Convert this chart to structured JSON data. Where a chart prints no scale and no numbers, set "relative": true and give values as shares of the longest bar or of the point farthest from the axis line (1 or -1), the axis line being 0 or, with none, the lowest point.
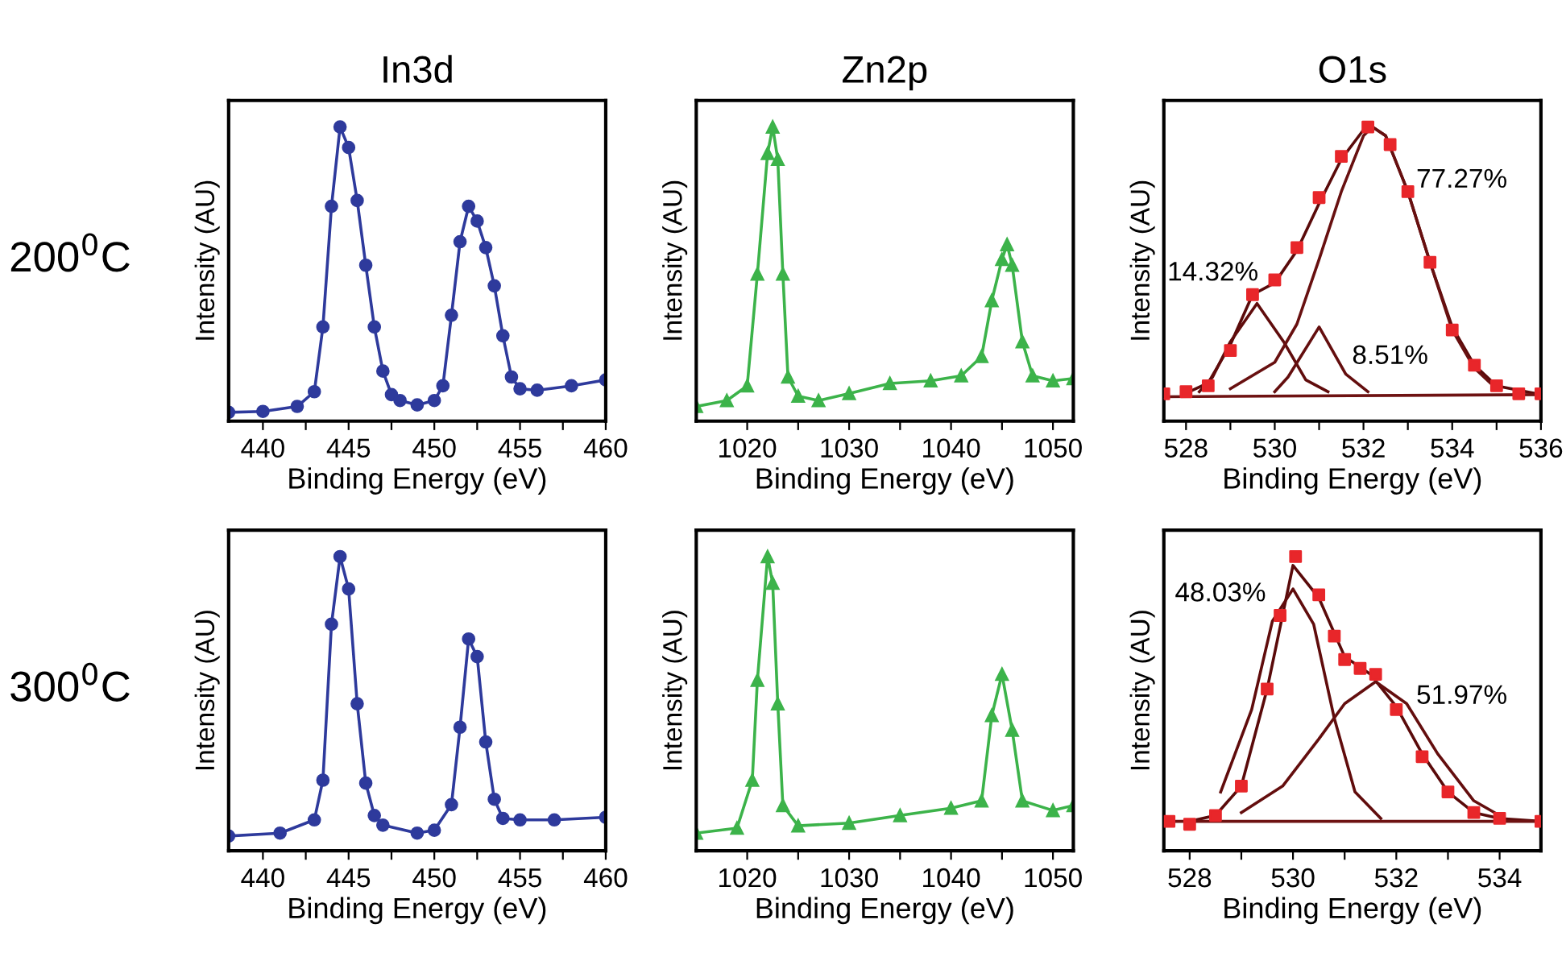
{
  "chart_data": [
    {
      "type": "line",
      "title": "In3d",
      "xlabel": "Binding Energy (eV)",
      "ylabel": "Intensity (AU)",
      "relative": true,
      "tick_labels": "x",
      "legend": false,
      "grid": false,
      "annotations": [
        "200$^{0}$C"
      ],
      "xlim": [
        438,
        460
      ],
      "xticks": [
        440,
        {
          "value": 442.5,
          "label": null
        },
        445,
        {
          "value": 447.5,
          "label": null
        },
        450,
        {
          "value": 452.5,
          "label": null
        },
        455,
        {
          "value": 457.5,
          "label": null
        },
        460
      ],
      "series": [
        {
          "color": "#2e3a9c",
          "marker": "circle",
          "x": [
            438,
            440,
            442,
            443,
            443.5,
            444,
            444.5,
            445,
            445.5,
            446,
            446.5,
            447,
            447.5,
            448,
            449,
            450,
            450.5,
            451,
            451.5,
            452,
            452.5,
            453,
            453.5,
            454,
            454.5,
            455,
            456,
            458,
            460
          ],
          "values": [
            0.03,
            0.033,
            0.05,
            0.1,
            0.32,
            0.73,
            1.0,
            0.93,
            0.75,
            0.53,
            0.32,
            0.17,
            0.09,
            0.07,
            0.055,
            0.07,
            0.12,
            0.36,
            0.61,
            0.73,
            0.68,
            0.59,
            0.46,
            0.29,
            0.15,
            0.11,
            0.105,
            0.12,
            0.14
          ]
        }
      ]
    },
    {
      "type": "line",
      "title": "Zn2p",
      "xlabel": "Binding Energy (eV)",
      "ylabel": "Intensity (AU)",
      "relative": true,
      "tick_labels": "x",
      "legend": false,
      "grid": false,
      "xlim": [
        1015,
        1052
      ],
      "xticks": [
        1020,
        {
          "value": 1025,
          "label": null
        },
        1030,
        {
          "value": 1035,
          "label": null
        },
        1040,
        {
          "value": 1045,
          "label": null
        },
        1050
      ],
      "series": [
        {
          "color": "#3cb34a",
          "marker": "triangle",
          "x": [
            1015,
            1018,
            1020,
            1021,
            1022,
            1022.5,
            1023,
            1023.5,
            1024,
            1025,
            1027,
            1030,
            1034,
            1038,
            1041,
            1043,
            1044,
            1045,
            1045.5,
            1046,
            1047,
            1048,
            1050,
            1052
          ],
          "values": [
            0.05,
            0.07,
            0.12,
            0.5,
            0.91,
            1.0,
            0.89,
            0.5,
            0.15,
            0.085,
            0.07,
            0.094,
            0.128,
            0.137,
            0.154,
            0.22,
            0.41,
            0.55,
            0.6,
            0.53,
            0.27,
            0.154,
            0.137,
            0.145
          ]
        }
      ]
    },
    {
      "type": "line",
      "title": "O1s",
      "xlabel": "Binding Energy (eV)",
      "ylabel": "Intensity (AU)",
      "relative": true,
      "tick_labels": "x",
      "legend": false,
      "grid": false,
      "annotations": [
        "77.27%",
        "14.32%",
        "8.51%"
      ],
      "xlim": [
        527.5,
        536
      ],
      "xticks": [
        528,
        {
          "value": 529,
          "label": null
        },
        530,
        {
          "value": 531,
          "label": null
        },
        532,
        {
          "value": 533,
          "label": null
        },
        534,
        {
          "value": 535,
          "label": null
        },
        536
      ],
      "series": [
        {
          "type": "scatter",
          "color": "#e8262a",
          "marker": "square",
          "x": [
            527.5,
            528,
            528.5,
            529,
            529.5,
            530,
            530.5,
            531,
            531.5,
            532.1,
            532.6,
            533,
            533.5,
            534,
            534.5,
            535,
            535.5,
            536
          ],
          "values": [
            0.093,
            0.1,
            0.12,
            0.24,
            0.43,
            0.48,
            0.59,
            0.76,
            0.9,
            1.0,
            0.94,
            0.78,
            0.54,
            0.31,
            0.19,
            0.12,
            0.093,
            0.093
          ]
        },
        {
          "color": "#5a0a0a",
          "marker": "none",
          "x": [
            528,
            528.5,
            529,
            529.5,
            530,
            530.5,
            531,
            531.5,
            532,
            532.2,
            532.5,
            533,
            533.5,
            534,
            534.5,
            535,
            536
          ],
          "values": [
            0.095,
            0.13,
            0.26,
            0.43,
            0.47,
            0.58,
            0.74,
            0.89,
            0.99,
            1.0,
            0.97,
            0.78,
            0.54,
            0.32,
            0.19,
            0.12,
            0.09
          ]
        },
        {
          "color": "#600c0c",
          "marker": "none",
          "x": [
            528.3,
            528.6,
            529,
            529.6,
            530.2,
            530.7,
            531.2
          ],
          "values": [
            0.1,
            0.15,
            0.27,
            0.4,
            0.27,
            0.14,
            0.1
          ]
        },
        {
          "color": "#640e0e",
          "marker": "none",
          "x": [
            530,
            530.3,
            531,
            531.6,
            532.1
          ],
          "values": [
            0.1,
            0.15,
            0.32,
            0.16,
            0.1
          ]
        },
        {
          "color": "#681010",
          "marker": "none",
          "x": [
            529,
            530,
            530.5,
            531,
            531.5,
            532,
            532.2,
            532.5,
            533,
            533.5,
            534,
            534.5,
            535
          ],
          "values": [
            0.11,
            0.2,
            0.33,
            0.55,
            0.78,
            0.97,
            1.0,
            0.97,
            0.78,
            0.54,
            0.31,
            0.18,
            0.11
          ]
        },
        {
          "color": "#6e1212",
          "marker": "none",
          "x": [
            527.5,
            536
          ],
          "values": [
            0.083,
            0.09
          ]
        }
      ]
    },
    {
      "type": "line",
      "xlabel": "Binding Energy (eV)",
      "ylabel": "Intensity (AU)",
      "relative": true,
      "tick_labels": "x",
      "legend": false,
      "grid": false,
      "annotations": [
        "300$^{0}$C"
      ],
      "xlim": [
        438,
        460
      ],
      "xticks": [
        440,
        {
          "value": 442.5,
          "label": null
        },
        445,
        {
          "value": 447.5,
          "label": null
        },
        450,
        {
          "value": 452.5,
          "label": null
        },
        455,
        {
          "value": 457.5,
          "label": null
        },
        460
      ],
      "series": [
        {
          "color": "#2e3a9c",
          "marker": "circle",
          "x": [
            438,
            441,
            443,
            443.5,
            444,
            444.5,
            445,
            445.5,
            446,
            446.5,
            447,
            449,
            450,
            451,
            451.5,
            452,
            452.5,
            453,
            453.5,
            454,
            455,
            457,
            460
          ],
          "values": [
            0.05,
            0.06,
            0.105,
            0.24,
            0.77,
            1.0,
            0.89,
            0.5,
            0.23,
            0.12,
            0.087,
            0.06,
            0.07,
            0.157,
            0.42,
            0.72,
            0.66,
            0.37,
            0.175,
            0.11,
            0.105,
            0.105,
            0.114
          ]
        }
      ]
    },
    {
      "type": "line",
      "xlabel": "Binding Energy (eV)",
      "ylabel": "Intensity (AU)",
      "relative": true,
      "tick_labels": "x",
      "legend": false,
      "grid": false,
      "xlim": [
        1015,
        1052
      ],
      "xticks": [
        1020,
        {
          "value": 1025,
          "label": null
        },
        1030,
        {
          "value": 1035,
          "label": null
        },
        1040,
        {
          "value": 1045,
          "label": null
        },
        1050
      ],
      "series": [
        {
          "color": "#3cb34a",
          "marker": "triangle",
          "x": [
            1015,
            1019,
            1020.5,
            1021,
            1022,
            1022.5,
            1023,
            1023.5,
            1025,
            1030,
            1035,
            1040,
            1043,
            1044,
            1045,
            1046,
            1047,
            1050,
            1052
          ],
          "values": [
            0.06,
            0.077,
            0.24,
            0.58,
            1.0,
            0.91,
            0.5,
            0.154,
            0.085,
            0.094,
            0.12,
            0.145,
            0.17,
            0.46,
            0.6,
            0.41,
            0.17,
            0.137,
            0.154
          ]
        }
      ]
    },
    {
      "type": "line",
      "xlabel": "Binding Energy (eV)",
      "ylabel": "Intensity (AU)",
      "relative": true,
      "tick_labels": "x",
      "legend": false,
      "grid": false,
      "annotations": [
        "48.03%",
        "51.97%"
      ],
      "xlim": [
        527.5,
        534.8
      ],
      "xticks": [
        528,
        {
          "value": 529,
          "label": null
        },
        530,
        {
          "value": 531,
          "label": null
        },
        532,
        {
          "value": 533,
          "label": null
        },
        534
      ],
      "series": [
        {
          "type": "scatter",
          "color": "#e8262a",
          "marker": "square",
          "x": [
            527.6,
            528,
            528.5,
            529,
            529.5,
            529.75,
            530.05,
            530.5,
            530.8,
            531,
            531.3,
            531.6,
            532,
            532.5,
            533,
            533.5,
            534,
            534.8
          ],
          "values": [
            0.1,
            0.09,
            0.12,
            0.22,
            0.55,
            0.8,
            1.0,
            0.87,
            0.73,
            0.65,
            0.62,
            0.6,
            0.48,
            0.32,
            0.2,
            0.13,
            0.11,
            0.1
          ]
        },
        {
          "color": "#5a0a0a",
          "marker": "none",
          "x": [
            528,
            528.5,
            529,
            529.5,
            530,
            530.5,
            531,
            531.5,
            532,
            532.5,
            533,
            533.5,
            534,
            534.8
          ],
          "values": [
            0.1,
            0.12,
            0.22,
            0.55,
            0.97,
            0.86,
            0.66,
            0.6,
            0.49,
            0.33,
            0.2,
            0.13,
            0.11,
            0.1
          ]
        },
        {
          "color": "#600c0c",
          "marker": "none",
          "x": [
            528.6,
            529.2,
            529.6,
            530,
            530.4,
            530.8,
            531.2,
            531.7
          ],
          "values": [
            0.2,
            0.48,
            0.78,
            0.89,
            0.77,
            0.45,
            0.2,
            0.11
          ]
        },
        {
          "color": "#640e0e",
          "marker": "none",
          "x": [
            529,
            529.8,
            530.5,
            531,
            531.6,
            532.2,
            532.8,
            533.5,
            534
          ],
          "values": [
            0.13,
            0.22,
            0.38,
            0.5,
            0.575,
            0.5,
            0.33,
            0.17,
            0.12
          ]
        },
        {
          "color": "#6e1212",
          "marker": "none",
          "x": [
            527.5,
            534.8
          ],
          "values": [
            0.1,
            0.1
          ]
        }
      ]
    }
  ]
}
